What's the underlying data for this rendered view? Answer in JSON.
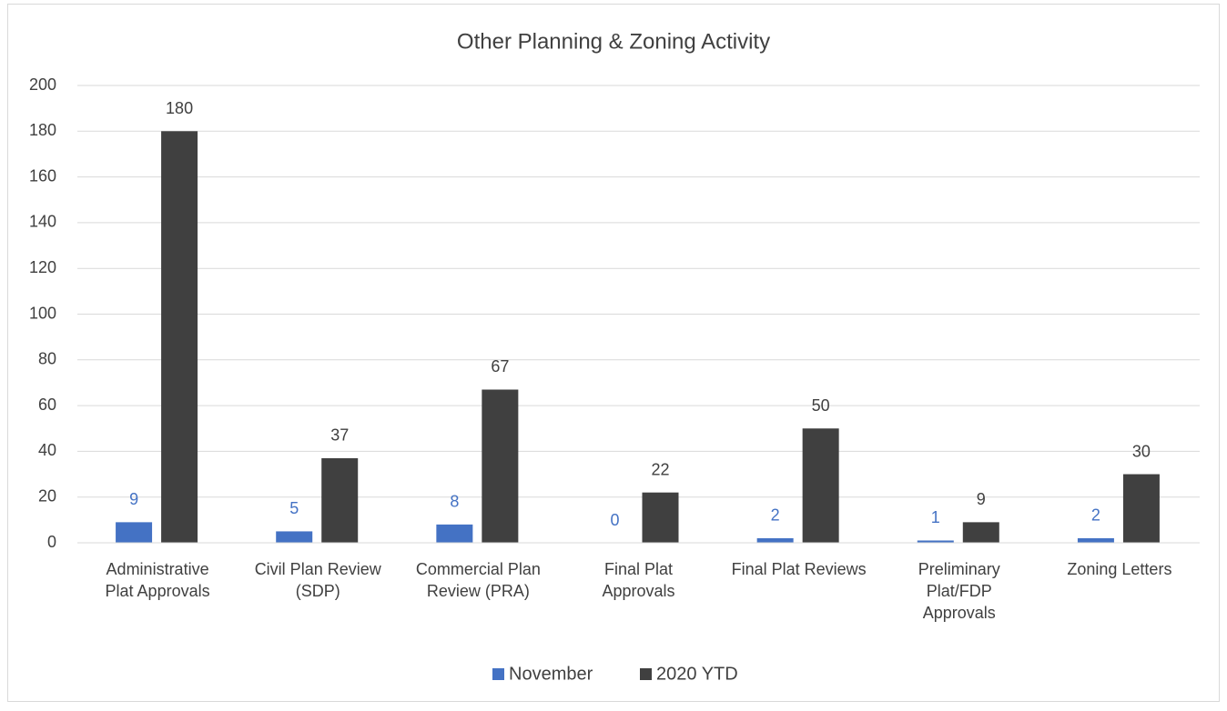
{
  "chart_data": {
    "type": "bar",
    "title": "Other Planning & Zoning Activity",
    "categories": [
      "Administrative\nPlat Approvals",
      "Civil Plan Review\n(SDP)",
      "Commercial Plan\nReview (PRA)",
      "Final Plat\nApprovals",
      "Final Plat Reviews",
      "Preliminary\nPlat/FDP\nApprovals",
      "Zoning Letters"
    ],
    "series": [
      {
        "name": "November",
        "color": "#4472c4",
        "values": [
          9,
          5,
          8,
          0,
          2,
          1,
          2
        ]
      },
      {
        "name": "2020 YTD",
        "color": "#404040",
        "values": [
          180,
          37,
          67,
          22,
          50,
          9,
          30
        ]
      }
    ],
    "ylim": [
      0,
      200
    ],
    "yticks": [
      0,
      20,
      40,
      60,
      80,
      100,
      120,
      140,
      160,
      180,
      200
    ],
    "grid": true,
    "legend": "bottom"
  }
}
